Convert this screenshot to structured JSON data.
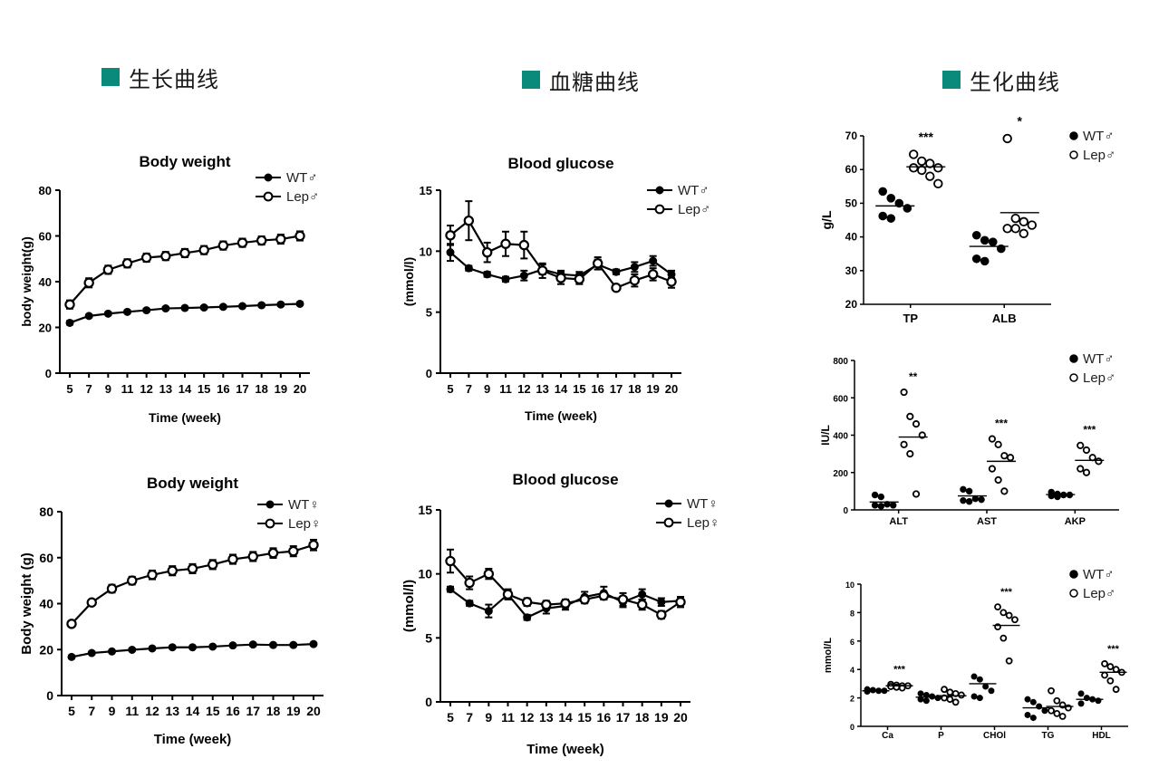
{
  "accent_color": "#0a8a7a",
  "sections": [
    {
      "title": "生长曲线"
    },
    {
      "title": "血糖曲线"
    },
    {
      "title": "生化曲线"
    }
  ],
  "chart_data": [
    {
      "id": "bw_male",
      "type": "line",
      "title": "Body weight",
      "xlabel": "Time (week)",
      "ylabel": "body weight(g)",
      "ylim": [
        0,
        80
      ],
      "yticks": [
        0,
        20,
        40,
        60,
        80
      ],
      "x": [
        "5",
        "7",
        "9",
        "11",
        "12",
        "13",
        "14",
        "15",
        "16",
        "17",
        "18",
        "19",
        "20"
      ],
      "series": [
        {
          "name": "WT♂",
          "marker": "filled",
          "values": [
            22,
            25,
            26,
            26.8,
            27.5,
            28.3,
            28.5,
            28.7,
            29,
            29.3,
            29.7,
            30,
            30.3
          ],
          "errors": [
            0.8,
            0.6,
            0.6,
            0.6,
            0.6,
            0.6,
            0.6,
            0.6,
            0.6,
            0.6,
            0.6,
            0.6,
            0.6
          ]
        },
        {
          "name": "Lep♂",
          "marker": "open",
          "values": [
            30,
            39.5,
            45.2,
            48,
            50.5,
            51.2,
            52.5,
            53.8,
            55.8,
            57,
            58,
            58.6,
            60
          ],
          "errors": [
            1.8,
            2,
            1.8,
            1.8,
            1.8,
            1.8,
            1.8,
            1.8,
            1.8,
            1.8,
            1.8,
            2,
            2
          ]
        }
      ]
    },
    {
      "id": "bw_female",
      "type": "line",
      "title": "Body weight",
      "xlabel": "Time (week)",
      "ylabel": "Body weight (g)",
      "ylim": [
        0,
        80
      ],
      "yticks": [
        0,
        20,
        40,
        60,
        80
      ],
      "x": [
        "5",
        "7",
        "9",
        "11",
        "12",
        "13",
        "14",
        "15",
        "16",
        "17",
        "18",
        "19",
        "20"
      ],
      "series": [
        {
          "name": "WT♀",
          "marker": "filled",
          "values": [
            16.8,
            18.5,
            19.2,
            19.9,
            20.5,
            21,
            21,
            21.3,
            21.8,
            22.2,
            22,
            22,
            22.4
          ],
          "errors": [
            0.6,
            0.5,
            0.5,
            0.5,
            0.5,
            0.5,
            0.5,
            0.5,
            0.5,
            0.5,
            0.5,
            0.5,
            0.5
          ]
        },
        {
          "name": "Lep♀",
          "marker": "open",
          "values": [
            31.2,
            40.5,
            46.5,
            50,
            52.5,
            54.3,
            55.2,
            57,
            59.3,
            60.5,
            62,
            62.8,
            65.5
          ],
          "errors": [
            1,
            1,
            1.7,
            1.7,
            1.9,
            2,
            2,
            2,
            2,
            2,
            2.1,
            2.2,
            2.3
          ]
        }
      ]
    },
    {
      "id": "bg_male",
      "type": "line",
      "title": "Blood glucose",
      "xlabel": "Time (week)",
      "ylabel": "(mmol/l)",
      "ylim": [
        0,
        15
      ],
      "yticks": [
        0,
        5,
        10,
        15
      ],
      "x": [
        "5",
        "7",
        "9",
        "11",
        "12",
        "13",
        "14",
        "15",
        "16",
        "17",
        "18",
        "19",
        "20"
      ],
      "series": [
        {
          "name": "WT♂",
          "marker": "filled",
          "values": [
            9.9,
            8.6,
            8.1,
            7.7,
            8,
            8.5,
            8.1,
            8,
            8.9,
            8.3,
            8.7,
            9.2,
            8.1
          ],
          "errors": [
            0.7,
            0.2,
            0.2,
            0.2,
            0.4,
            0.4,
            0.3,
            0.3,
            0.4,
            0.2,
            0.4,
            0.4,
            0.3
          ]
        },
        {
          "name": "Lep♂",
          "marker": "open",
          "values": [
            11.3,
            12.5,
            9.9,
            10.6,
            10.5,
            8.4,
            7.8,
            7.7,
            9,
            7,
            7.6,
            8.1,
            7.5
          ],
          "errors": [
            0.8,
            1.6,
            0.8,
            1,
            1.1,
            0.6,
            0.5,
            0.4,
            0.5,
            0.2,
            0.5,
            0.5,
            0.5
          ]
        }
      ]
    },
    {
      "id": "bg_female",
      "type": "line",
      "title": "Blood glucose",
      "xlabel": "Time (week)",
      "ylabel": "(mmol/l)",
      "ylim": [
        0,
        15
      ],
      "yticks": [
        0,
        5,
        10,
        15
      ],
      "x": [
        "5",
        "7",
        "9",
        "11",
        "12",
        "13",
        "14",
        "15",
        "16",
        "17",
        "18",
        "19",
        "20"
      ],
      "series": [
        {
          "name": "WT♀",
          "marker": "filled",
          "values": [
            8.8,
            7.7,
            7.1,
            8.4,
            6.6,
            7.3,
            7.5,
            8.2,
            8.5,
            7.8,
            8.4,
            7.8,
            7.9
          ],
          "errors": [
            0.2,
            0.2,
            0.5,
            0.3,
            0.2,
            0.4,
            0.3,
            0.4,
            0.5,
            0.4,
            0.4,
            0.3,
            0.3
          ]
        },
        {
          "name": "Lep♀",
          "marker": "open",
          "values": [
            11,
            9.3,
            10,
            8.4,
            7.8,
            7.6,
            7.7,
            8,
            8.3,
            8,
            7.6,
            6.8,
            7.8
          ],
          "errors": [
            0.9,
            0.5,
            0.4,
            0.4,
            0.3,
            0.3,
            0.3,
            0.3,
            0.3,
            0.5,
            0.4,
            0.3,
            0.4
          ]
        }
      ]
    },
    {
      "id": "bio_protein",
      "type": "scatter",
      "ylabel": "g/L",
      "ylim": [
        20,
        70
      ],
      "yticks": [
        20,
        30,
        40,
        50,
        60,
        70
      ],
      "categories": [
        "TP",
        "ALB"
      ],
      "legend": [
        "WT♂",
        "Lep♂"
      ],
      "significance": [
        "***",
        "*"
      ],
      "groups": [
        {
          "wt": [
            53.5,
            51.5,
            50,
            48.5,
            46.2,
            45.5
          ],
          "wt_mean": 49.2,
          "lep": [
            64.5,
            62.5,
            61.8,
            60.5,
            60.5,
            59.8,
            58,
            55.8
          ],
          "lep_mean": 60.8
        },
        {
          "wt": [
            40.5,
            39,
            38.5,
            36.5,
            33.5,
            32.8
          ],
          "wt_mean": 37.2,
          "lep": [
            69.2,
            45.5,
            44.5,
            43.5,
            42.5,
            42.5,
            41
          ],
          "lep_mean": 47.2
        }
      ]
    },
    {
      "id": "bio_enzyme",
      "type": "scatter",
      "ylabel": "IU/L",
      "ylim": [
        0,
        800
      ],
      "yticks": [
        0,
        200,
        400,
        600,
        800
      ],
      "categories": [
        "ALT",
        "AST",
        "AKP"
      ],
      "legend": [
        "WT♂",
        "Lep♂"
      ],
      "significance": [
        "**",
        "***",
        "***"
      ],
      "groups": [
        {
          "wt": [
            80,
            70,
            30,
            25,
            25,
            20
          ],
          "wt_mean": 42,
          "lep": [
            630,
            500,
            460,
            400,
            350,
            300,
            85
          ],
          "lep_mean": 390
        },
        {
          "wt": [
            110,
            100,
            60,
            55,
            50,
            45
          ],
          "wt_mean": 75,
          "lep": [
            380,
            350,
            290,
            280,
            220,
            160,
            100
          ],
          "lep_mean": 260
        },
        {
          "wt": [
            95,
            85,
            80,
            80,
            75,
            70
          ],
          "wt_mean": 82,
          "lep": [
            345,
            320,
            280,
            260,
            220,
            200
          ],
          "lep_mean": 265
        }
      ]
    },
    {
      "id": "bio_lipid",
      "type": "scatter",
      "ylabel": "mmol/L",
      "ylim": [
        0,
        10
      ],
      "yticks": [
        0,
        2,
        4,
        6,
        8,
        10
      ],
      "categories": [
        "Ca",
        "P",
        "CHOl",
        "TG",
        "HDL"
      ],
      "legend": [
        "WT♂",
        "Lep♂"
      ],
      "significance": [
        "***",
        "",
        "***",
        "",
        "***"
      ],
      "groups": [
        {
          "wt": [
            2.6,
            2.55,
            2.5,
            2.5,
            2.45
          ],
          "wt_mean": 2.5,
          "lep": [
            2.95,
            2.9,
            2.85,
            2.85,
            2.8,
            2.75,
            2.7
          ],
          "lep_mean": 2.85
        },
        {
          "wt": [
            2.3,
            2.2,
            2.1,
            2.0,
            1.9,
            1.8
          ],
          "wt_mean": 2.05,
          "lep": [
            2.6,
            2.4,
            2.3,
            2.2,
            2.0,
            1.9,
            1.7
          ],
          "lep_mean": 2.15
        },
        {
          "wt": [
            3.5,
            3.3,
            2.8,
            2.5,
            2.1,
            2.0
          ],
          "wt_mean": 3.0,
          "lep": [
            8.4,
            8.0,
            7.8,
            7.5,
            7.0,
            6.2,
            4.6
          ],
          "lep_mean": 7.1
        },
        {
          "wt": [
            1.9,
            1.7,
            1.4,
            1.1,
            0.8,
            0.6
          ],
          "wt_mean": 1.3,
          "lep": [
            2.5,
            1.8,
            1.5,
            1.3,
            1.1,
            0.9,
            0.7
          ],
          "lep_mean": 1.4
        },
        {
          "wt": [
            2.3,
            2.0,
            1.9,
            1.8,
            1.6
          ],
          "wt_mean": 1.9,
          "lep": [
            4.4,
            4.2,
            4.0,
            3.8,
            3.6,
            3.2,
            2.6
          ],
          "lep_mean": 3.8
        }
      ]
    }
  ]
}
